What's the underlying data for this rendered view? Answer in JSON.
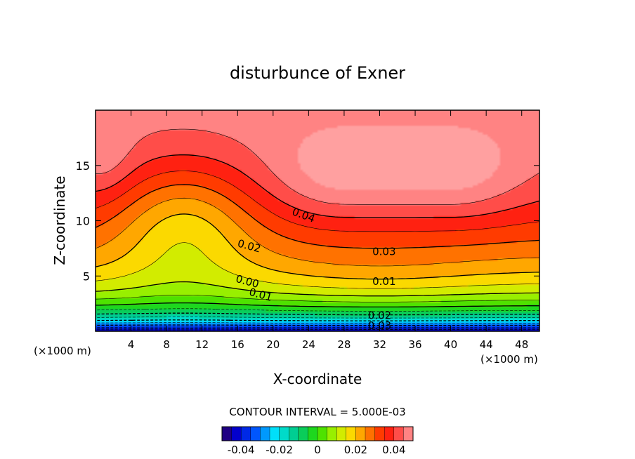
{
  "chart_data": {
    "type": "heatmap",
    "title": "disturbunce of Exner",
    "xlabel": "X-coordinate",
    "ylabel": "Z-coordinate",
    "x_unit_left": "(×1000 m)",
    "x_unit_right": "(×1000 m)",
    "xlim": [
      0,
      50
    ],
    "ylim": [
      0,
      20
    ],
    "x_ticks": [
      4,
      8,
      12,
      16,
      20,
      24,
      28,
      32,
      36,
      40,
      44,
      48
    ],
    "y_ticks": [
      5,
      10,
      15
    ],
    "contour_interval_text": "CONTOUR INTERVAL = 5.000E-03",
    "contour_interval": 0.005,
    "contour_labels": [
      {
        "text": "0.04",
        "x": 23.3,
        "z": 10.2,
        "rotate": 20
      },
      {
        "text": "0.03",
        "x": 32.5,
        "z": 6.9,
        "rotate": 0
      },
      {
        "text": "0.02",
        "x": 17.2,
        "z": 7.4,
        "rotate": 15
      },
      {
        "text": "0.01",
        "x": 32.5,
        "z": 4.2,
        "rotate": 0
      },
      {
        "text": "0.00",
        "x": 17.0,
        "z": 4.2,
        "rotate": 15
      },
      {
        "text": "0.01",
        "x": 18.5,
        "z": 3.0,
        "rotate": 15
      },
      {
        "text": "0.02",
        "x": 32.0,
        "z": 1.1,
        "rotate": 0
      },
      {
        "text": "0.03",
        "x": 32.0,
        "z": 0.2,
        "rotate": 0
      }
    ],
    "colorbar": {
      "min": -0.05,
      "max": 0.05,
      "tick_values": [
        -0.04,
        -0.02,
        0,
        0.02,
        0.04
      ],
      "tick_labels": [
        "-0.04",
        "-0.02",
        "0",
        "0.02",
        "0.04"
      ]
    }
  }
}
